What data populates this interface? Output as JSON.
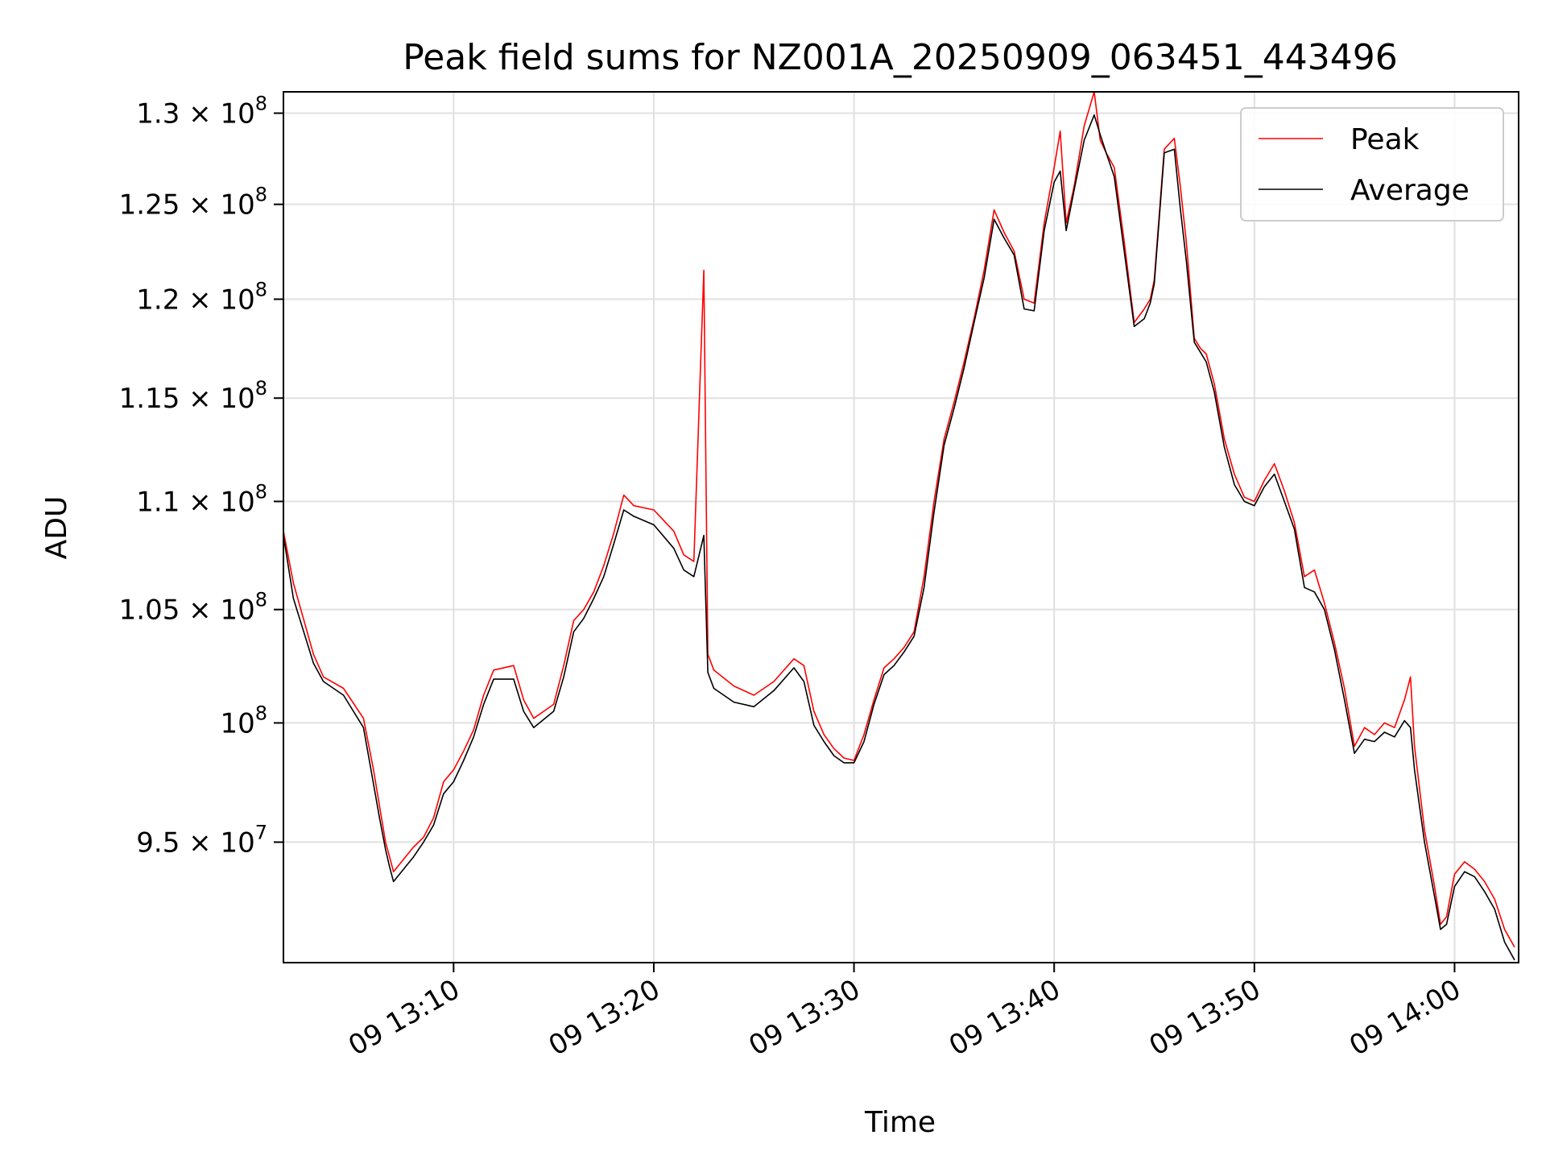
{
  "chart_data": {
    "type": "line",
    "title": "Peak field sums for NZ001A_20250909_063451_443496",
    "xlabel": "Time",
    "ylabel": "ADU",
    "x_unit": "minutes after 09 13:00",
    "xlim": [
      1.5,
      63.2
    ],
    "ylim": [
      90.2,
      131.2
    ],
    "y_scale": "log",
    "y_unit": "1e6 ADU",
    "grid": true,
    "legend_position": "top-right",
    "x_ticks": [
      {
        "value": 10,
        "label": "09 13:10"
      },
      {
        "value": 20,
        "label": "09 13:20"
      },
      {
        "value": 30,
        "label": "09 13:30"
      },
      {
        "value": 40,
        "label": "09 13:40"
      },
      {
        "value": 50,
        "label": "09 13:50"
      },
      {
        "value": 60,
        "label": "09 14:00"
      }
    ],
    "y_ticks": [
      {
        "value": 95,
        "base": "9.5 × 10",
        "exp": "7"
      },
      {
        "value": 100,
        "base": "10",
        "exp": "8"
      },
      {
        "value": 105,
        "base": "1.05 × 10",
        "exp": "8"
      },
      {
        "value": 110,
        "base": "1.1 × 10",
        "exp": "8"
      },
      {
        "value": 115,
        "base": "1.15 × 10",
        "exp": "8"
      },
      {
        "value": 120,
        "base": "1.2 × 10",
        "exp": "8"
      },
      {
        "value": 125,
        "base": "1.25 × 10",
        "exp": "8"
      },
      {
        "value": 130,
        "base": "1.3 × 10",
        "exp": "8"
      }
    ],
    "x": [
      1.5,
      2.0,
      3.0,
      3.5,
      4.5,
      5.5,
      6.0,
      6.3,
      6.6,
      6.8,
      7.0,
      8.0,
      8.5,
      9.0,
      9.5,
      10.0,
      10.5,
      11.0,
      11.5,
      12.0,
      13.0,
      13.5,
      14.0,
      15.0,
      15.5,
      16.0,
      16.5,
      17.0,
      17.5,
      18.0,
      18.5,
      19.0,
      20.0,
      21.0,
      21.5,
      22.0,
      22.5,
      22.7,
      23.0,
      24.0,
      25.0,
      26.0,
      27.0,
      27.5,
      28.0,
      28.5,
      29.0,
      29.5,
      30.0,
      30.5,
      31.0,
      31.5,
      32.0,
      32.5,
      33.0,
      33.5,
      34.0,
      34.5,
      35.0,
      35.5,
      36.0,
      36.5,
      37.0,
      37.5,
      38.0,
      38.5,
      39.0,
      39.5,
      40.0,
      40.3,
      40.6,
      41.0,
      41.5,
      42.0,
      42.3,
      42.6,
      43.0,
      43.5,
      44.0,
      44.5,
      44.8,
      45.0,
      45.5,
      46.0,
      46.3,
      46.6,
      47.0,
      47.3,
      47.6,
      48.0,
      48.5,
      49.0,
      49.5,
      50.0,
      50.5,
      51.0,
      51.5,
      52.0,
      52.5,
      53.0,
      53.5,
      54.0,
      54.5,
      55.0,
      55.5,
      56.0,
      56.5,
      57.0,
      57.5,
      57.8,
      58.0,
      58.5,
      59.0,
      59.3,
      59.6,
      60.0,
      60.5,
      61.0,
      61.5,
      62.0,
      62.5,
      63.0
    ],
    "series": [
      {
        "name": "Peak",
        "color": "#ff0000",
        "values": [
          108.6,
          106.2,
          103.0,
          102.0,
          101.5,
          100.2,
          98.0,
          96.5,
          95.0,
          94.4,
          93.8,
          94.8,
          95.2,
          96.0,
          97.5,
          98.0,
          98.8,
          99.7,
          101.2,
          102.3,
          102.5,
          101.0,
          100.2,
          100.8,
          102.5,
          104.5,
          105.0,
          105.8,
          107.0,
          108.5,
          110.3,
          109.8,
          109.6,
          108.6,
          107.5,
          107.2,
          121.5,
          103.0,
          102.3,
          101.6,
          101.2,
          101.8,
          102.8,
          102.5,
          100.5,
          99.5,
          98.9,
          98.5,
          98.4,
          99.5,
          101.0,
          102.4,
          102.8,
          103.3,
          104.0,
          106.5,
          110.0,
          113.0,
          114.8,
          116.8,
          119.0,
          121.5,
          124.7,
          123.5,
          122.5,
          120.0,
          119.8,
          124.0,
          127.0,
          129.0,
          124.0,
          126.0,
          129.3,
          131.2,
          128.5,
          127.8,
          127.0,
          123.0,
          118.8,
          119.5,
          120.0,
          121.0,
          128.0,
          128.6,
          126.0,
          123.0,
          118.0,
          117.5,
          117.2,
          115.7,
          113.0,
          111.3,
          110.2,
          110.0,
          111.0,
          111.8,
          110.5,
          109.0,
          106.5,
          106.8,
          105.3,
          103.5,
          101.5,
          99.0,
          99.8,
          99.5,
          100.0,
          99.8,
          101.0,
          102.0,
          99.0,
          95.5,
          93.2,
          91.7,
          92.0,
          93.7,
          94.2,
          93.9,
          93.4,
          92.7,
          91.5,
          90.8
        ]
      },
      {
        "name": "Average",
        "color": "#000000",
        "values": [
          108.4,
          105.5,
          102.6,
          101.8,
          101.2,
          99.8,
          97.4,
          96.0,
          94.7,
          94.0,
          93.4,
          94.4,
          95.0,
          95.7,
          97.0,
          97.5,
          98.4,
          99.4,
          100.8,
          101.9,
          101.9,
          100.5,
          99.8,
          100.5,
          102.0,
          104.0,
          104.6,
          105.5,
          106.5,
          108.0,
          109.6,
          109.3,
          108.9,
          107.8,
          106.8,
          106.5,
          108.4,
          102.2,
          101.5,
          100.9,
          100.7,
          101.4,
          102.4,
          101.8,
          99.9,
          99.2,
          98.6,
          98.3,
          98.3,
          99.2,
          100.8,
          102.1,
          102.5,
          103.1,
          103.8,
          106.0,
          109.5,
          112.7,
          114.5,
          116.5,
          118.8,
          121.1,
          124.2,
          123.2,
          122.3,
          119.5,
          119.4,
          123.6,
          126.2,
          126.8,
          123.6,
          125.8,
          128.5,
          129.9,
          128.8,
          127.8,
          126.5,
          122.5,
          118.6,
          119.0,
          119.8,
          120.8,
          127.8,
          128.0,
          124.8,
          122.0,
          117.8,
          117.3,
          116.8,
          115.3,
          112.6,
          110.8,
          110.0,
          109.8,
          110.7,
          111.3,
          110.0,
          108.7,
          106.0,
          105.8,
          105.0,
          103.2,
          101.0,
          98.7,
          99.3,
          99.2,
          99.6,
          99.4,
          100.1,
          99.8,
          98.0,
          95.0,
          92.8,
          91.5,
          91.7,
          93.2,
          93.8,
          93.6,
          93.0,
          92.3,
          91.0,
          90.3
        ]
      }
    ]
  }
}
